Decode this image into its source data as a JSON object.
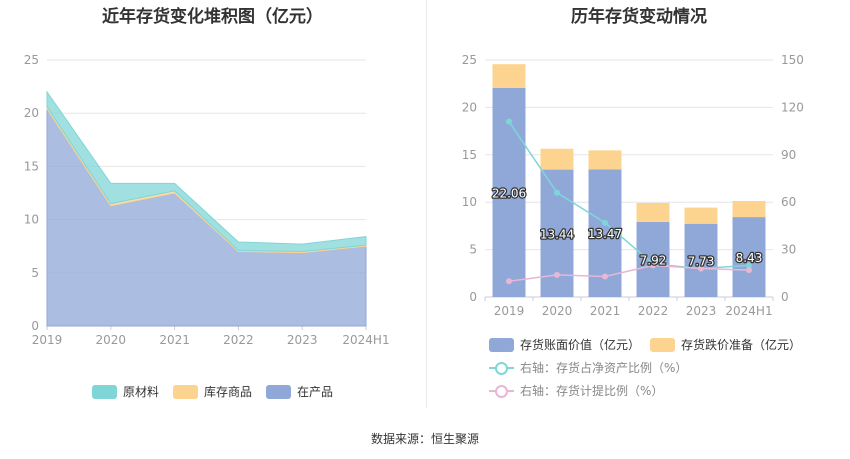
{
  "source_text": "数据来源：恒生聚源",
  "charts": [
    {
      "title": "近年存货变化堆积图（亿元）",
      "chart_data": {
        "type": "area",
        "stacked": true,
        "categories": [
          "2019",
          "2020",
          "2021",
          "2022",
          "2023",
          "2024H1"
        ],
        "ylim": [
          0,
          25
        ],
        "yticks": [
          0,
          5,
          10,
          15,
          20,
          25
        ],
        "grid": true,
        "legend_position": "bottom",
        "series": [
          {
            "name": "在产品",
            "color": "#8fa8d8",
            "values": [
              20.4,
              11.3,
              12.5,
              7.0,
              6.9,
              7.5
            ]
          },
          {
            "name": "库存商品",
            "color": "#fdd48f",
            "values": [
              0.2,
              0.2,
              0.2,
              0.1,
              0.1,
              0.1
            ]
          },
          {
            "name": "原材料",
            "color": "#80d6d7",
            "values": [
              1.4,
              1.9,
              0.7,
              0.8,
              0.7,
              0.8
            ]
          }
        ],
        "legend_order": [
          2,
          1,
          0
        ]
      }
    },
    {
      "title": "历年存货变动情况",
      "chart_data": {
        "type": "bar",
        "stacked": true,
        "categories": [
          "2019",
          "2020",
          "2021",
          "2022",
          "2023",
          "2024H1"
        ],
        "ylim": [
          0,
          25
        ],
        "yticks": [
          0,
          5,
          10,
          15,
          20,
          25
        ],
        "y2lim": [
          0,
          150
        ],
        "y2ticks": [
          0,
          30,
          60,
          90,
          120,
          150
        ],
        "grid": true,
        "legend_position": "bottom",
        "series": [
          {
            "name": "存货账面价值（亿元）",
            "axis": "left",
            "kind": "bar",
            "color": "#8fa8d8",
            "values": [
              22.06,
              13.44,
              13.47,
              7.92,
              7.73,
              8.43
            ],
            "data_labels": [
              "22.06",
              "13.44",
              "13.47",
              "7.92",
              "7.73",
              "8.43"
            ]
          },
          {
            "name": "存货跌价准备（亿元）",
            "axis": "left",
            "kind": "bar",
            "color": "#fdd48f",
            "values": [
              2.5,
              2.2,
              2.0,
              2.0,
              1.7,
              1.7
            ]
          },
          {
            "name": "右轴：存货占净资产比例（%）",
            "axis": "right",
            "kind": "line",
            "color": "#80d6d7",
            "values": [
              111,
              66,
              47,
              21,
              18,
              20
            ]
          },
          {
            "name": "右轴：存货计提比例（%）",
            "axis": "right",
            "kind": "line",
            "color": "#e8b6d6",
            "values": [
              10,
              14,
              13,
              20,
              18,
              17
            ]
          }
        ]
      }
    }
  ]
}
